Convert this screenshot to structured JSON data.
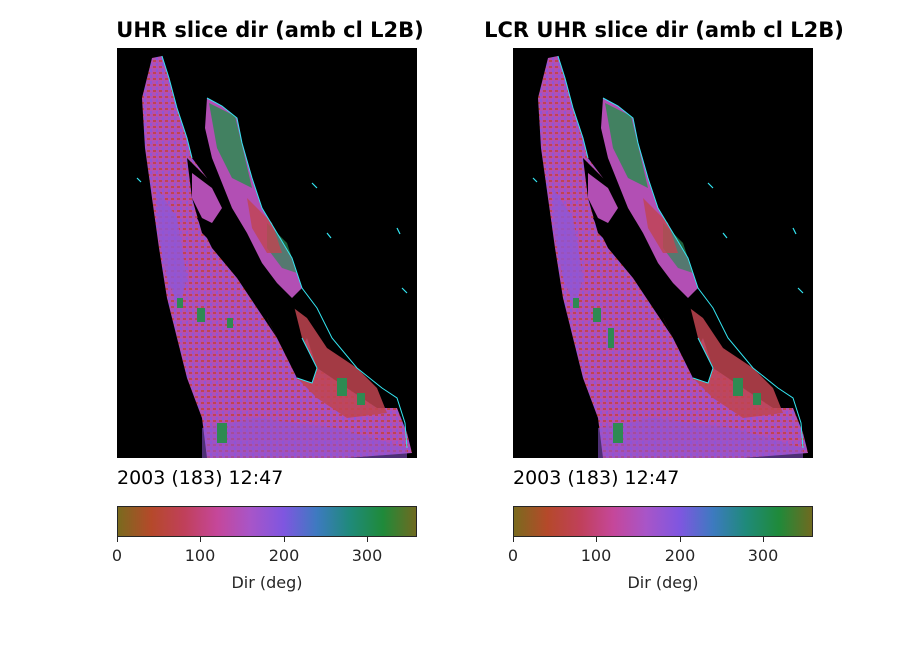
{
  "panels": [
    {
      "title": "UHR slice dir (amb cl L2B)",
      "timestamp": "2003 (183) 12:47"
    },
    {
      "title": "LCR UHR slice dir (amb cl L2B)",
      "timestamp": "2003 (183) 12:47"
    }
  ],
  "colorbar": {
    "label": "Dir (deg)",
    "ticks": [
      "0",
      "100",
      "200",
      "300"
    ],
    "tick_values": [
      0,
      100,
      200,
      300
    ],
    "range": [
      0,
      360
    ],
    "colors": [
      "#7a6a1e",
      "#b5492a",
      "#c0405a",
      "#c5479a",
      "#a855c8",
      "#7f56e0",
      "#3d7ac0",
      "#1f8a7a",
      "#1f8a3a",
      "#6f6a20"
    ]
  },
  "map_colors": {
    "background": "#000000",
    "coastline": "#33e6f2",
    "swath_magenta": "#b24fb4",
    "swath_red": "#c04450",
    "swath_purple": "#8e56d6",
    "swath_green": "#2e8a52"
  },
  "chart_data": [
    {
      "type": "heatmap",
      "title": "UHR slice dir (amb cl L2B)",
      "annotation": "2003 (183) 12:47",
      "colorbar_label": "Dir (deg)",
      "colorbar_range": [
        0,
        360
      ],
      "colorbar_ticks": [
        0,
        100,
        200,
        300
      ],
      "dominant_direction_deg": [
        90,
        150
      ],
      "secondary_direction_deg": [
        300,
        340
      ]
    },
    {
      "type": "heatmap",
      "title": "LCR UHR slice dir (amb cl L2B)",
      "annotation": "2003 (183) 12:47",
      "colorbar_label": "Dir (deg)",
      "colorbar_range": [
        0,
        360
      ],
      "colorbar_ticks": [
        0,
        100,
        200,
        300
      ],
      "dominant_direction_deg": [
        90,
        150
      ],
      "secondary_direction_deg": [
        300,
        340
      ]
    }
  ]
}
